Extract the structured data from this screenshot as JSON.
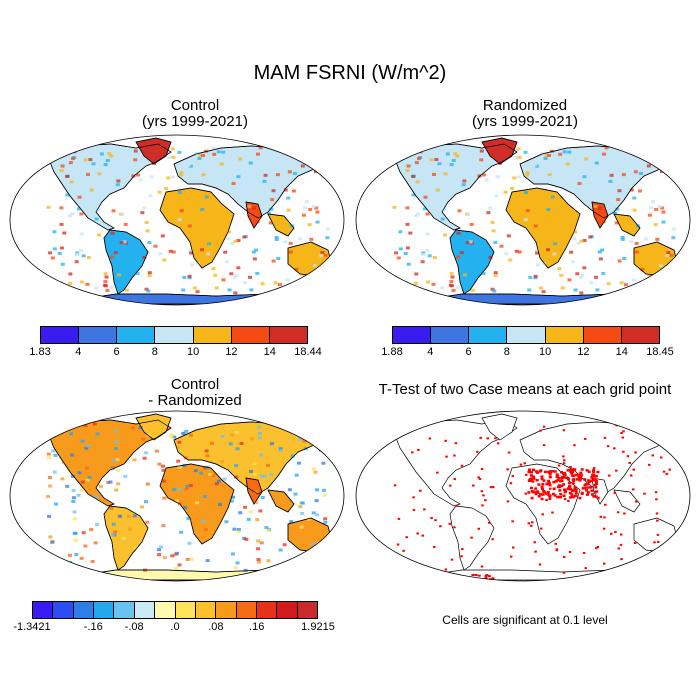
{
  "main_title": "MAM FSRNI (W/m^2)",
  "panels": {
    "control": {
      "title_line1": "Control",
      "title_line2": "(yrs 1999-2021)"
    },
    "randomized": {
      "title_line1": "Randomized",
      "title_line2": "(yrs 1999-2021)"
    },
    "difference": {
      "title_line1": "Control",
      "title_line2": "- Randomized"
    },
    "ttest": {
      "title": "T-Test of two Case means at each grid point",
      "note": "Cells are significant at 0.1 level",
      "significant_color": "#ff0000"
    }
  },
  "colorbars": {
    "control": {
      "colors": [
        "#3b1cf0",
        "#3f75e0",
        "#23b2ef",
        "#c6e6f5",
        "#f6b61a",
        "#f44a14",
        "#cf2d26"
      ],
      "labels": [
        "1.83",
        "4",
        "6",
        "8",
        "10",
        "12",
        "14",
        "18.44"
      ]
    },
    "randomized": {
      "colors": [
        "#3b1cf0",
        "#3f75e0",
        "#23b2ef",
        "#c6e6f5",
        "#f6b61a",
        "#f44a14",
        "#cf2d26"
      ],
      "labels": [
        "1.88",
        "4",
        "6",
        "8",
        "10",
        "12",
        "14",
        "18.45"
      ]
    },
    "difference": {
      "colors": [
        "#3b1cf0",
        "#2b4ef3",
        "#2f7de6",
        "#25a7ee",
        "#69c3f1",
        "#c9e9f5",
        "#fff9b0",
        "#fde25a",
        "#fbc02d",
        "#f89b1d",
        "#f56a13",
        "#e8311a",
        "#d21a1a",
        "#c92a2a"
      ],
      "labels": [
        "-1.3421",
        "-.16",
        "-.08",
        ".0",
        ".08",
        ".16",
        "1.9215"
      ]
    }
  }
}
